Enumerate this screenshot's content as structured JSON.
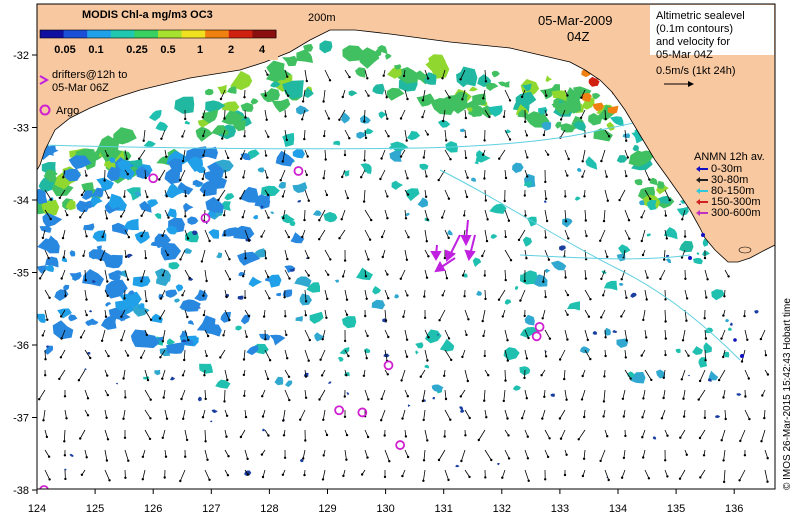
{
  "title": "MODIS Chl-a mg/m3 OC3",
  "colorbar_ticks": [
    "0.05",
    "0.1",
    "0.25",
    "0.5",
    "1",
    "2",
    "4"
  ],
  "colorbar_colors": [
    "#1010a0",
    "#1a4fd8",
    "#1fa0e8",
    "#20c8b0",
    "#38d060",
    "#a8e030",
    "#f0e020",
    "#f08010",
    "#d02010",
    "#8a1010"
  ],
  "contour_label": "200m",
  "date": "05-Mar-2009",
  "time": "04Z",
  "sealevel_note": [
    "Altimetric sealevel",
    "(0.1m contours)",
    "and velocity for",
    "05-Mar 04Z"
  ],
  "velocity_scale_label": "0.5m/s (1kt 24h)",
  "drifters_label": [
    "drifters@12h to",
    "05-Mar 06Z"
  ],
  "argo_label": "Argo",
  "anmn_title": "ANMN 12h av.",
  "anmn_legend": [
    {
      "label": "0-30m",
      "color": "#1010c0"
    },
    {
      "label": "30-80m",
      "color": "#202020"
    },
    {
      "label": "80-150m",
      "color": "#30c8d8"
    },
    {
      "label": "150-300m",
      "color": "#d02020"
    },
    {
      "label": "300-600m",
      "color": "#c030c0"
    }
  ],
  "x_ticks": [
    "124",
    "125",
    "126",
    "127",
    "128",
    "129",
    "130",
    "131",
    "132",
    "133",
    "134",
    "135",
    "136"
  ],
  "y_ticks": [
    "-32",
    "-33",
    "-34",
    "-35",
    "-36",
    "-37",
    "-38"
  ],
  "credit": "© IMOS 26-Mar-2015 15:42:43 Hobart time",
  "colors": {
    "land": "#f8c8a0",
    "argo": "#d020d0",
    "drifter": "#c020e0",
    "contour": "#60d0e0"
  },
  "argo_floats": [
    {
      "lon": 126.0,
      "lat": -33.7
    },
    {
      "lon": 126.9,
      "lat": -34.25
    },
    {
      "lon": 128.5,
      "lat": -33.6
    },
    {
      "lon": 132.65,
      "lat": -35.75
    },
    {
      "lon": 132.6,
      "lat": -35.88
    },
    {
      "lon": 130.05,
      "lat": -36.28
    },
    {
      "lon": 129.2,
      "lat": -36.9
    },
    {
      "lon": 129.6,
      "lat": -36.93
    },
    {
      "lon": 130.25,
      "lat": -37.38
    },
    {
      "lon": 124.12,
      "lat": -38.0
    }
  ]
}
